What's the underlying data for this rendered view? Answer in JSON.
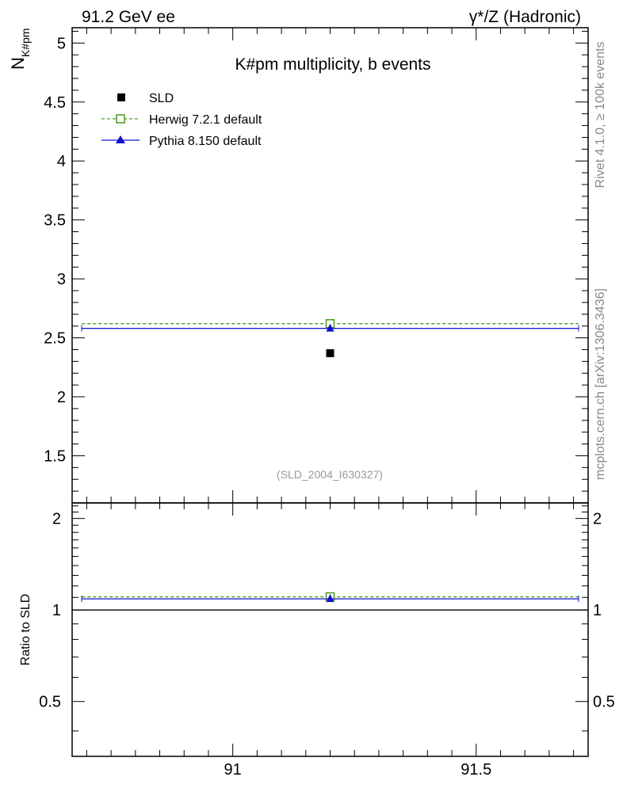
{
  "header": {
    "left": "91.2 GeV ee",
    "right": "γ*/Z (Hadronic)"
  },
  "side": {
    "rivet": "Rivet 4.1.0, ≥ 100k events",
    "mcplots": "mcplots.cern.ch [arXiv:1306.3436]"
  },
  "colors": {
    "data": "#000000",
    "herwig": "#4a9a1a",
    "pythia": "#1010d0",
    "watermark": "#999999"
  },
  "chart_data": [
    {
      "type": "scatter",
      "title": "K#pm multiplicity, b events",
      "ylabel_main": "N",
      "ylabel_sub": "K#pm",
      "xlim": [
        90.67,
        91.73
      ],
      "ylim": [
        1.1,
        5.13
      ],
      "yticks": [
        1.5,
        2,
        2.5,
        3,
        3.5,
        4,
        4.5,
        5
      ],
      "ytick_labels": [
        "1.5",
        "2",
        "2.5",
        "3",
        "3.5",
        "4",
        "4.5",
        "5"
      ],
      "analysis_id": "(SLD_2004_I630327)",
      "legend": {
        "position": "top-left",
        "entries": [
          "SLD",
          "Herwig 7.2.1 default",
          "Pythia 8.150 default"
        ]
      },
      "series": [
        {
          "name": "SLD",
          "style": "marker",
          "x": 91.2,
          "y": 2.37
        },
        {
          "name": "Herwig 7.2.1 default",
          "style": "dashed",
          "x": [
            90.69,
            91.71
          ],
          "y": 2.62
        },
        {
          "name": "Pythia 8.150 default",
          "style": "solid",
          "x": [
            90.69,
            91.71
          ],
          "y": 2.58
        }
      ]
    },
    {
      "type": "scatter",
      "title": "",
      "ylabel": "Ratio to SLD",
      "xlabel": "",
      "xlim": [
        90.67,
        91.73
      ],
      "ylim": [
        0.33,
        2.25
      ],
      "yticks": [
        0.5,
        1,
        2
      ],
      "ytick_labels": [
        "0.5",
        "1",
        "2"
      ],
      "xticks": [
        91,
        91.5
      ],
      "xtick_labels": [
        "91",
        "91.5"
      ],
      "reference_line": 1,
      "series": [
        {
          "name": "Herwig 7.2.1 default",
          "style": "dashed",
          "x": [
            90.69,
            91.71
          ],
          "y": 1.105
        },
        {
          "name": "Pythia 8.150 default",
          "style": "solid",
          "x": [
            90.69,
            91.71
          ],
          "y": 1.088
        }
      ]
    }
  ]
}
